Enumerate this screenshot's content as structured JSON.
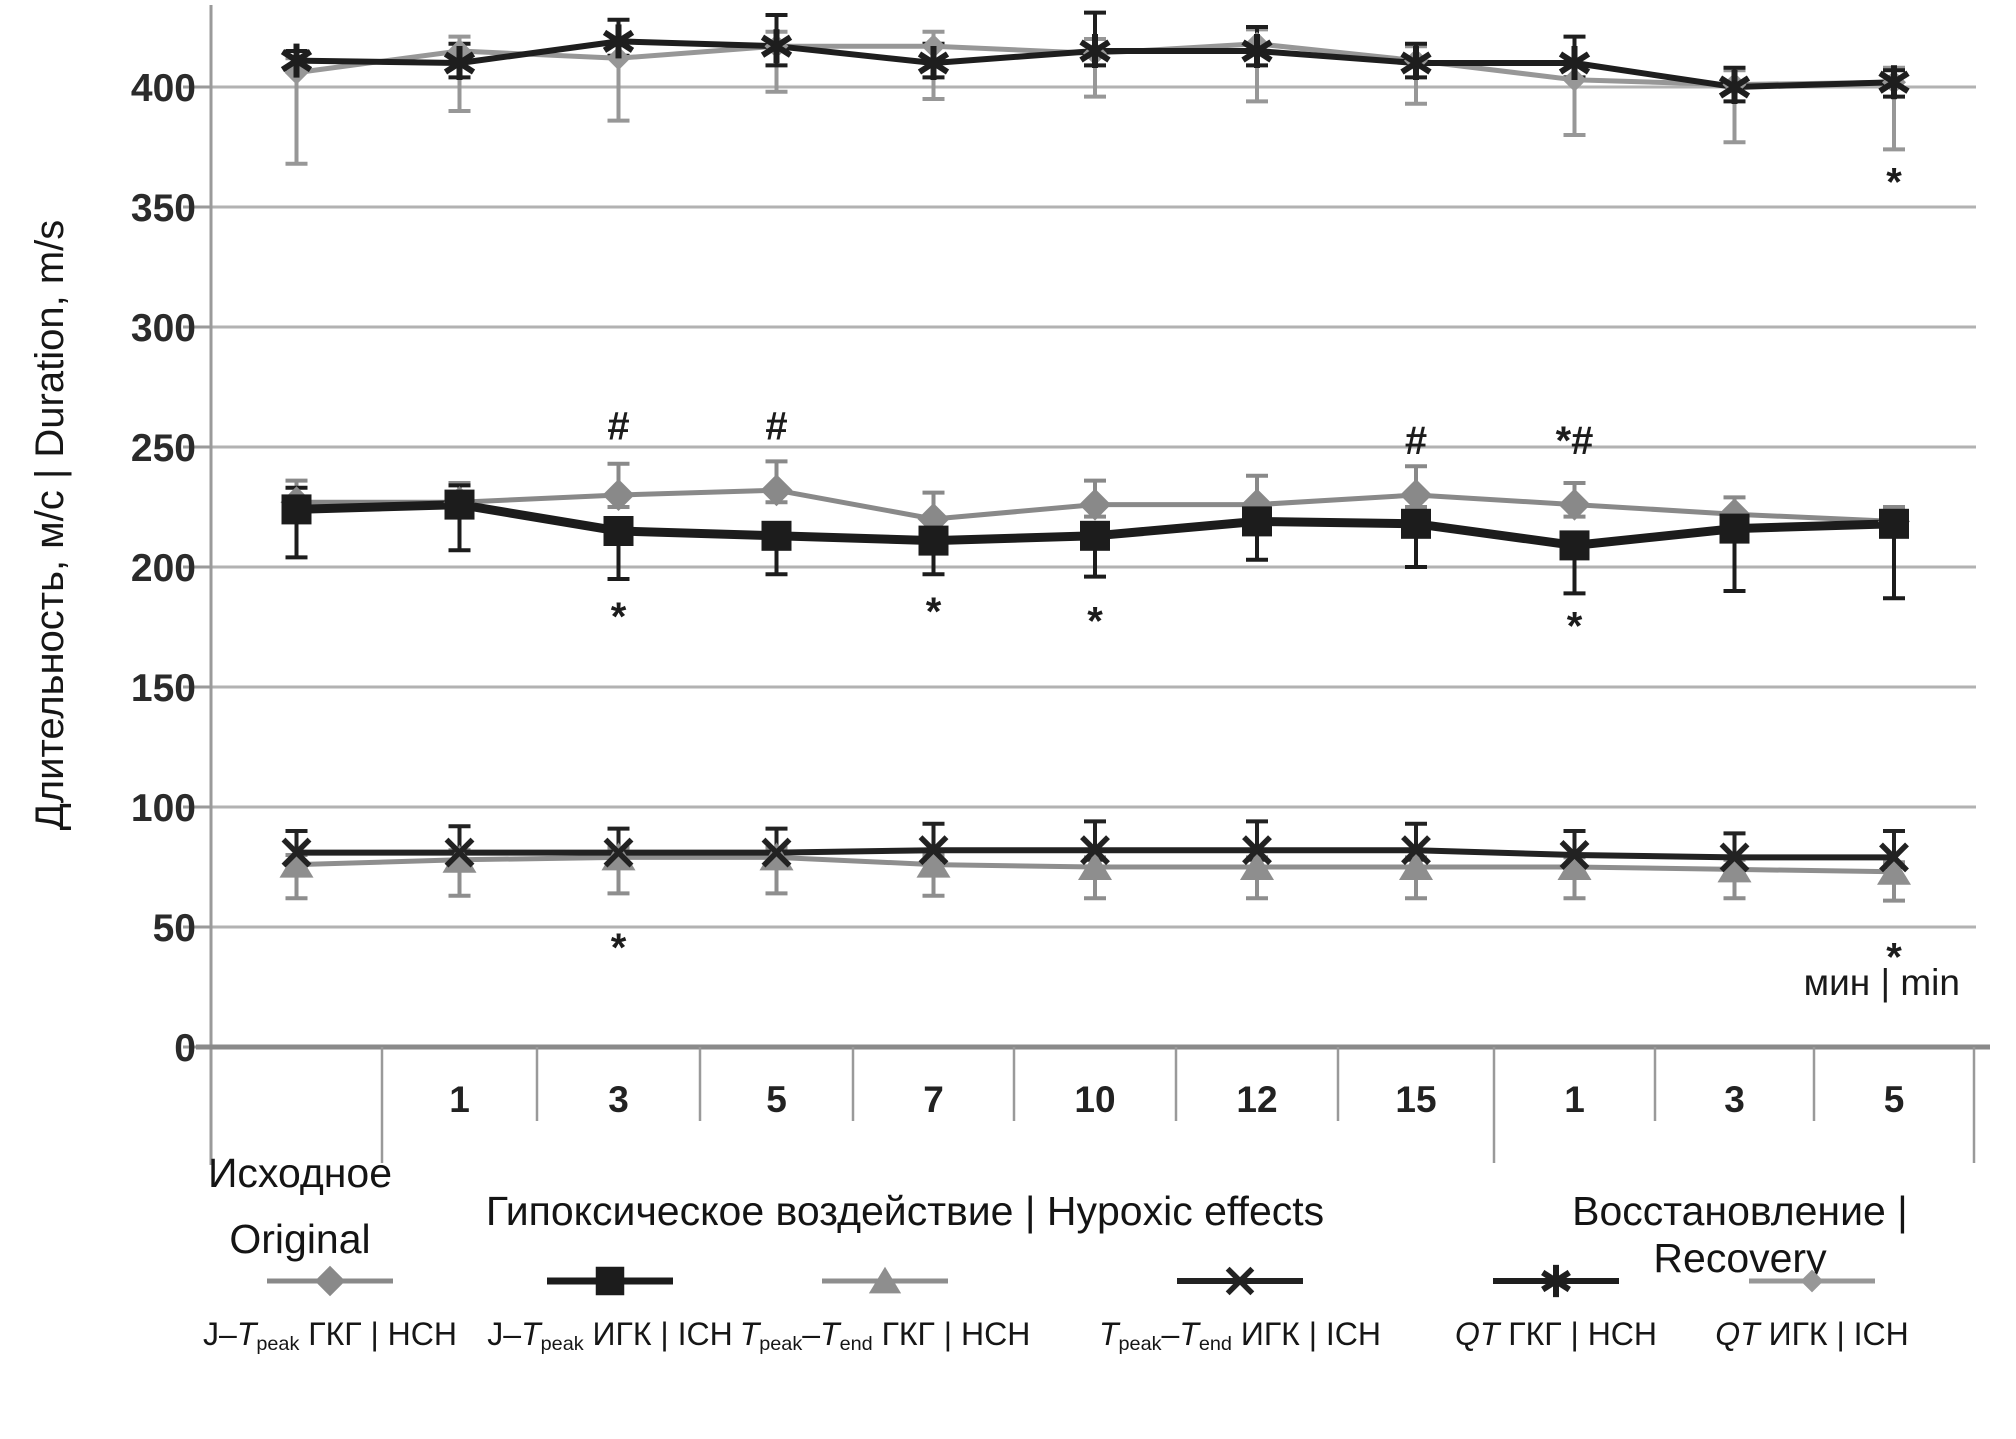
{
  "labels": {
    "y_title": "Длительность, м/с | Duration, m/s",
    "x_unit": "мин | min",
    "group_original_line1": "Исходное",
    "group_original_line2": "Original",
    "group_hypoxic": "Гипоксическое воздействие | Hypoxic effects",
    "group_recovery": "Восстановление | Recovery"
  },
  "chart_data": {
    "type": "line",
    "title": "",
    "xlabel": "мин | min",
    "ylabel": "Длительность, м/с | Duration, m/s",
    "ylim": [
      0,
      437
    ],
    "yticks": [
      0,
      50,
      100,
      150,
      200,
      250,
      300,
      350,
      400
    ],
    "grid": true,
    "legend_position": "bottom",
    "categories": [
      "",
      "1",
      "3",
      "5",
      "7",
      "10",
      "12",
      "15",
      "1",
      "3",
      "5"
    ],
    "category_groups": [
      {
        "label": "Исходное | Original",
        "span": [
          0,
          0
        ]
      },
      {
        "label": "Гипоксическое воздействие | Hypoxic effects",
        "span": [
          1,
          7
        ]
      },
      {
        "label": "Восстановление | Recovery",
        "span": [
          8,
          10
        ]
      }
    ],
    "series": [
      {
        "name": "J–Tpeak ГКГ | НСН",
        "marker": "diamond",
        "color": "#898989",
        "line_width": 5,
        "values": [
          227,
          227,
          230,
          232,
          220,
          226,
          226,
          230,
          226,
          222,
          219
        ],
        "err_up": [
          9,
          8,
          13,
          12,
          11,
          10,
          12,
          12,
          9,
          7,
          6
        ],
        "err_down": [
          5,
          5,
          5,
          5,
          5,
          5,
          5,
          5,
          5,
          5,
          5
        ],
        "label_parts": [
          {
            "t": "J–"
          },
          {
            "t": "T",
            "i": 1
          },
          {
            "t": "peak",
            "s": 1
          },
          {
            "t": " ГКГ | НСН"
          }
        ]
      },
      {
        "name": "J–Tpeak ИГК | ICH",
        "marker": "square",
        "color": "#1c1c1c",
        "line_width": 9,
        "values": [
          224,
          226,
          215,
          213,
          211,
          213,
          219,
          218,
          209,
          216,
          218
        ],
        "err_up": [
          9,
          8,
          4,
          4,
          4,
          4,
          4,
          4,
          4,
          4,
          4
        ],
        "err_down": [
          20,
          19,
          20,
          16,
          14,
          17,
          16,
          18,
          20,
          26,
          31
        ],
        "label_parts": [
          {
            "t": "J–"
          },
          {
            "t": "T",
            "i": 1
          },
          {
            "t": "peak",
            "s": 1
          },
          {
            "t": " ИГК | ICH"
          }
        ]
      },
      {
        "name": "Tpeak–Tend ГКГ | НСН",
        "marker": "triangle",
        "color": "#8e8e8e",
        "line_width": 5,
        "values": [
          76,
          78,
          79,
          79,
          76,
          75,
          75,
          75,
          75,
          74,
          73
        ],
        "err_up": [
          4,
          4,
          4,
          4,
          4,
          4,
          4,
          4,
          4,
          4,
          4
        ],
        "err_down": [
          14,
          15,
          15,
          15,
          13,
          13,
          13,
          13,
          13,
          12,
          12
        ],
        "label_parts": [
          {
            "t": "T",
            "i": 1
          },
          {
            "t": "peak",
            "s": 1
          },
          {
            "t": "–"
          },
          {
            "t": "T",
            "i": 1
          },
          {
            "t": "end",
            "s": 1
          },
          {
            "t": " ГКГ | НСН"
          }
        ]
      },
      {
        "name": "Tpeak–Tend ИГК | ICH",
        "marker": "xcross",
        "color": "#222222",
        "line_width": 6,
        "values": [
          81,
          81,
          81,
          81,
          82,
          82,
          82,
          82,
          80,
          79,
          79
        ],
        "err_up": [
          9,
          11,
          10,
          10,
          11,
          12,
          12,
          11,
          10,
          10,
          11
        ],
        "err_down": [
          4,
          4,
          4,
          4,
          4,
          4,
          4,
          4,
          4,
          4,
          4
        ],
        "label_parts": [
          {
            "t": "T",
            "i": 1
          },
          {
            "t": "peak",
            "s": 1
          },
          {
            "t": "–"
          },
          {
            "t": "T",
            "i": 1
          },
          {
            "t": "end",
            "s": 1
          },
          {
            "t": " ИГК | ICH"
          }
        ]
      },
      {
        "name": "QT ГКГ | НСН",
        "marker": "asterisk",
        "color": "#1e1e1e",
        "line_width": 6,
        "values": [
          411,
          410,
          419,
          417,
          410,
          415,
          415,
          410,
          410,
          400,
          402
        ],
        "err_up": [
          4,
          8,
          9,
          13,
          8,
          16,
          10,
          8,
          11,
          8,
          5
        ],
        "err_down": [
          4,
          6,
          6,
          8,
          6,
          6,
          6,
          6,
          6,
          6,
          6
        ],
        "label_parts": [
          {
            "t": "QT",
            "i": 1
          },
          {
            "t": " ГКГ | НСН"
          }
        ]
      },
      {
        "name": "QT ИГК | ICH",
        "marker": "diamond-small",
        "color": "#979797",
        "line_width": 5,
        "values": [
          406,
          415,
          412,
          417,
          417,
          414,
          418,
          411,
          403,
          401,
          402
        ],
        "err_up": [
          6,
          6,
          6,
          6,
          6,
          6,
          6,
          6,
          6,
          6,
          6
        ],
        "err_down": [
          38,
          25,
          26,
          19,
          22,
          18,
          24,
          18,
          23,
          24,
          28
        ],
        "label_parts": [
          {
            "t": "QT",
            "i": 1
          },
          {
            "t": " ИГК | ICH"
          }
        ]
      }
    ],
    "annotations": [
      {
        "i": 2,
        "v": 259,
        "t": "#"
      },
      {
        "i": 3,
        "v": 259,
        "t": "#"
      },
      {
        "i": 7,
        "v": 253,
        "t": "#"
      },
      {
        "i": 8,
        "v": 253,
        "t": "*#"
      },
      {
        "i": 2,
        "v": 183,
        "t": "*"
      },
      {
        "i": 4,
        "v": 185,
        "t": "*"
      },
      {
        "i": 5,
        "v": 181,
        "t": "*"
      },
      {
        "i": 8,
        "v": 179,
        "t": "*"
      },
      {
        "i": 2,
        "v": 45,
        "t": "*"
      },
      {
        "i": 10,
        "v": 41,
        "t": "*"
      },
      {
        "i": 10,
        "v": 364,
        "t": "*"
      }
    ]
  }
}
